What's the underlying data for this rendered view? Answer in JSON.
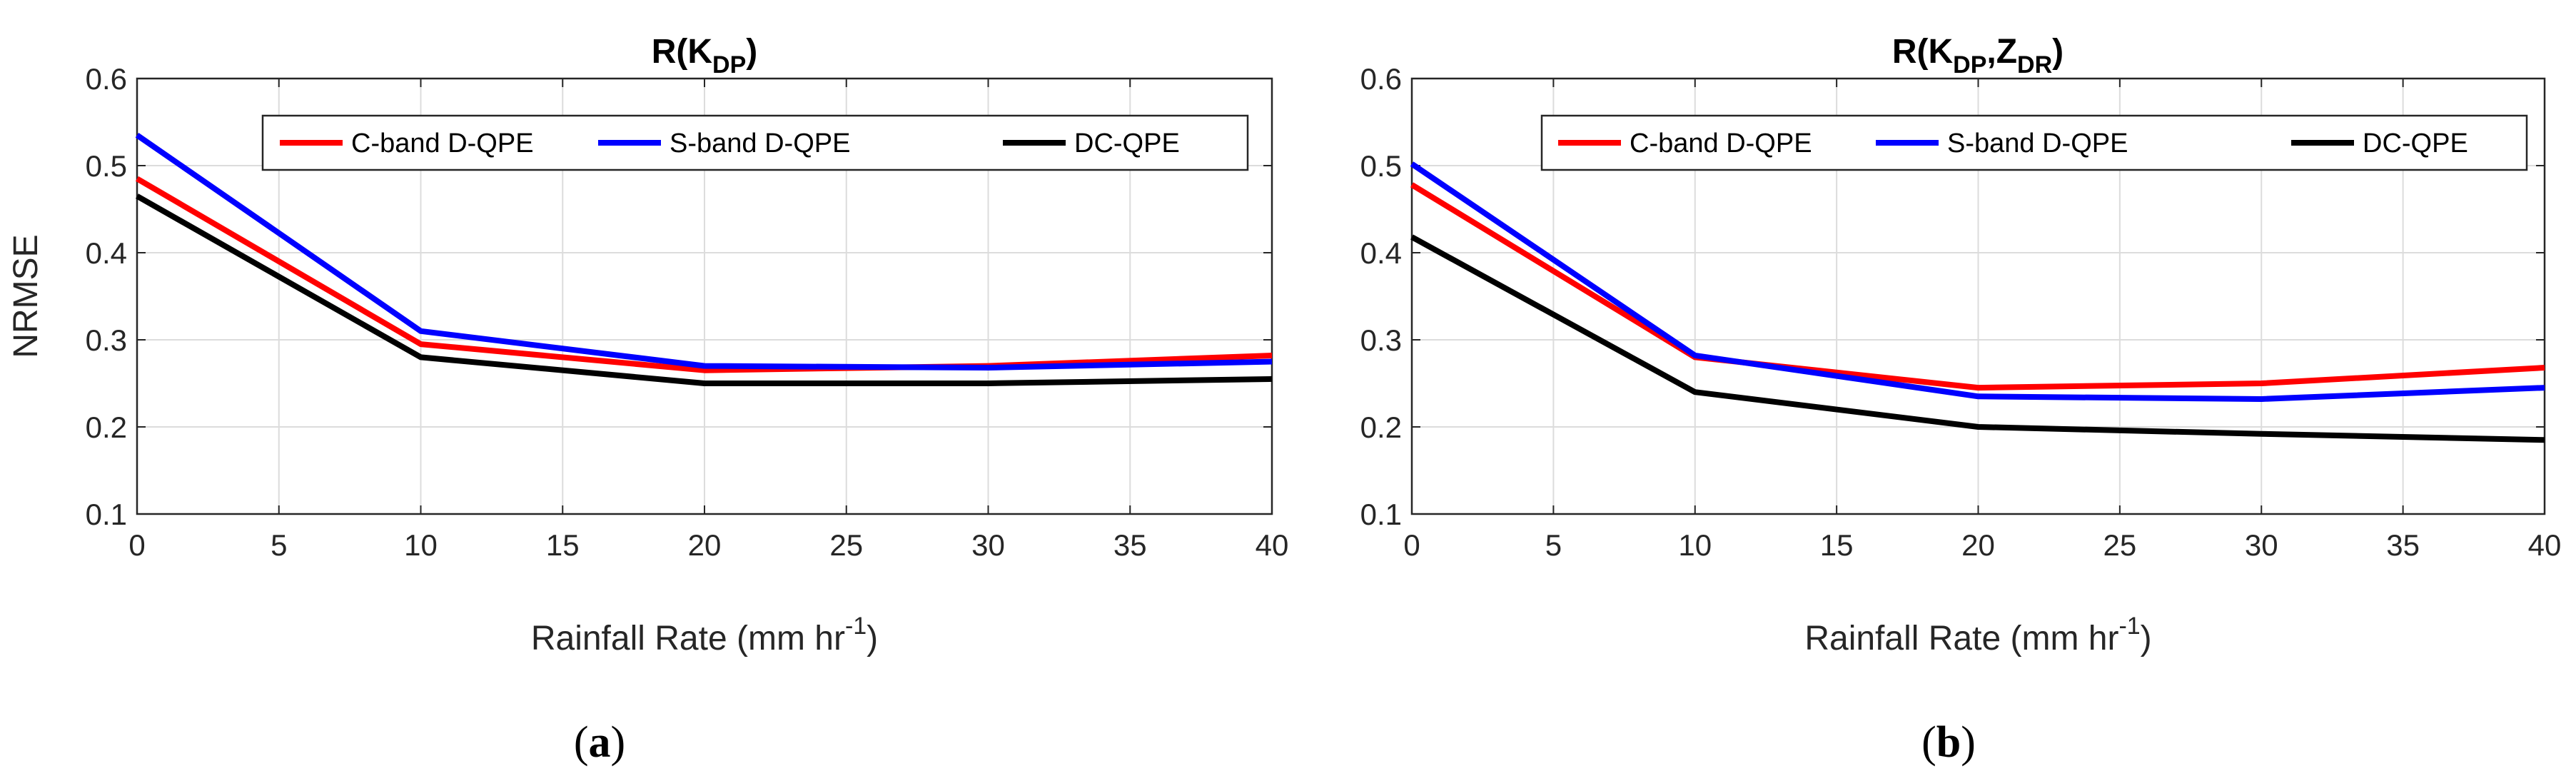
{
  "chart_data": [
    {
      "type": "line",
      "title": {
        "base": "R(K",
        "sub": "DP",
        "close": ")"
      },
      "xlabel": {
        "base": "Rainfall Rate (mm hr",
        "sup": "-1",
        "close": ")"
      },
      "ylabel": "NRMSE",
      "xlim": [
        0,
        40
      ],
      "ylim": [
        0.1,
        0.6
      ],
      "xticks": [
        0,
        5,
        10,
        15,
        20,
        25,
        30,
        35,
        40
      ],
      "yticks": [
        0.1,
        0.2,
        0.3,
        0.4,
        0.5,
        0.6
      ],
      "x": [
        0,
        10,
        20,
        30,
        40
      ],
      "grid": true,
      "legend_position": "top",
      "series": [
        {
          "name": "C-band D-QPE",
          "color": "#ff0000",
          "values": [
            0.485,
            0.295,
            0.265,
            0.27,
            0.282
          ]
        },
        {
          "name": "S-band D-QPE",
          "color": "#0000ff",
          "values": [
            0.535,
            0.31,
            0.27,
            0.268,
            0.275
          ]
        },
        {
          "name": "DC-QPE",
          "color": "#000000",
          "values": [
            0.465,
            0.28,
            0.25,
            0.25,
            0.255
          ]
        }
      ],
      "panel_label": "a"
    },
    {
      "type": "line",
      "title": {
        "base": "R(K",
        "sub": "DP",
        "mid": ",Z",
        "sub2": "DR",
        "close": ")"
      },
      "xlabel": {
        "base": "Rainfall Rate (mm hr",
        "sup": "-1",
        "close": ")"
      },
      "ylabel": "",
      "xlim": [
        0,
        40
      ],
      "ylim": [
        0.1,
        0.6
      ],
      "xticks": [
        0,
        5,
        10,
        15,
        20,
        25,
        30,
        35,
        40
      ],
      "yticks": [
        0.1,
        0.2,
        0.3,
        0.4,
        0.5,
        0.6
      ],
      "x": [
        0,
        10,
        20,
        30,
        40
      ],
      "grid": true,
      "legend_position": "top",
      "series": [
        {
          "name": "C-band D-QPE",
          "color": "#ff0000",
          "values": [
            0.478,
            0.28,
            0.245,
            0.25,
            0.268
          ]
        },
        {
          "name": "S-band D-QPE",
          "color": "#0000ff",
          "values": [
            0.502,
            0.282,
            0.235,
            0.232,
            0.245
          ]
        },
        {
          "name": "DC-QPE",
          "color": "#000000",
          "values": [
            0.418,
            0.24,
            0.2,
            0.192,
            0.185
          ]
        }
      ],
      "panel_label": "b"
    }
  ]
}
